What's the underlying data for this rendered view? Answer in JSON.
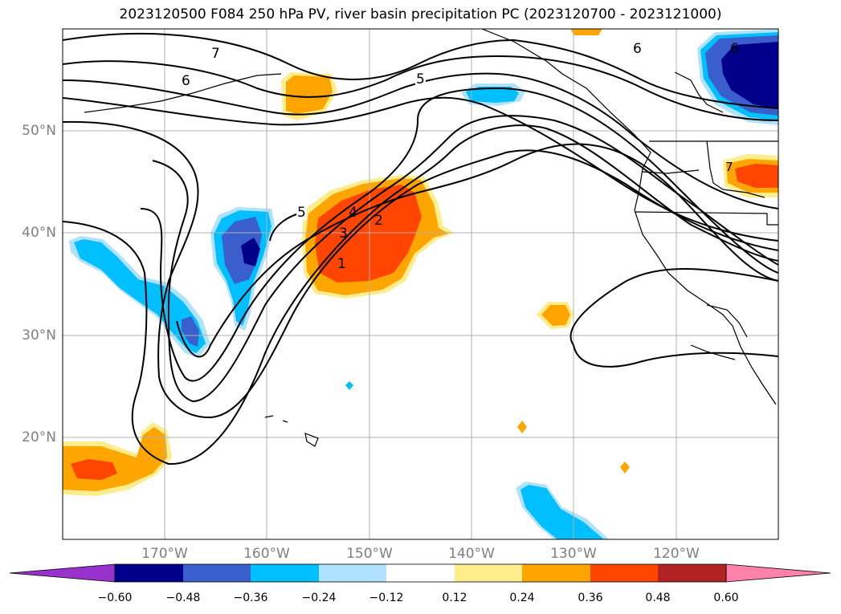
{
  "title": "2023120500 F084 250 hPa PV, river basin precipitation PC (2023120700 - 2023121000)",
  "lat_labels": [
    "50°N",
    "40°N",
    "30°N",
    "20°N"
  ],
  "lon_labels": [
    "170°W",
    "160°W",
    "150°W",
    "140°W",
    "130°W",
    "120°W"
  ],
  "contour_labels": [
    "7",
    "6",
    "5",
    "6",
    "6",
    "5",
    "4",
    "3",
    "2",
    "1",
    "7"
  ],
  "colorbar": {
    "colors": [
      "#9932cc",
      "#00008b",
      "#3a5fcd",
      "#00bfff",
      "#b0e2ff",
      "#ffffff",
      "#ffec8b",
      "#ffa500",
      "#ff4500",
      "#b22222",
      "#ff82ab"
    ],
    "ticks": [
      "−0.60",
      "−0.48",
      "−0.36",
      "−0.24",
      "−0.12",
      "0.12",
      "0.24",
      "0.36",
      "0.48",
      "0.60"
    ]
  }
}
